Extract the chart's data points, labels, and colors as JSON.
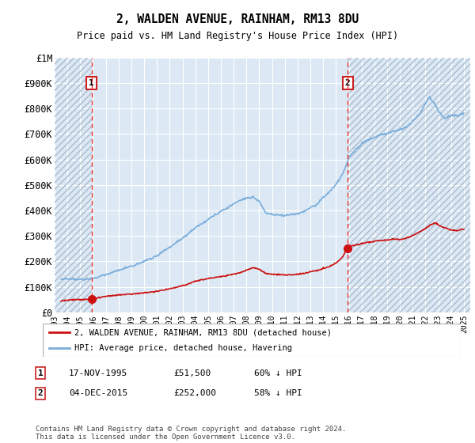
{
  "title": "2, WALDEN AVENUE, RAINHAM, RM13 8DU",
  "subtitle": "Price paid vs. HM Land Registry's House Price Index (HPI)",
  "ylim": [
    0,
    1000000
  ],
  "yticks": [
    0,
    100000,
    200000,
    300000,
    400000,
    500000,
    600000,
    700000,
    800000,
    900000,
    1000000
  ],
  "ytick_labels": [
    "£0",
    "£100K",
    "£200K",
    "£300K",
    "£400K",
    "£500K",
    "£600K",
    "£700K",
    "£800K",
    "£900K",
    "£1M"
  ],
  "xlim_start": 1993.0,
  "xlim_end": 2025.5,
  "plot_bg_color": "#dce9f5",
  "hatch_color": "#aabbcc",
  "grid_color": "#ffffff",
  "transaction1_date": 1995.88,
  "transaction1_price": 51500,
  "transaction2_date": 2015.92,
  "transaction2_price": 252000,
  "red_line_color": "#cc1111",
  "blue_line_color": "#7aaddb",
  "vline_color": "#ee3333",
  "marker_color": "#cc1111",
  "legend_label_red": "2, WALDEN AVENUE, RAINHAM, RM13 8DU (detached house)",
  "legend_label_blue": "HPI: Average price, detached house, Havering",
  "table_row1": [
    "1",
    "17-NOV-1995",
    "£51,500",
    "60% ↓ HPI"
  ],
  "table_row2": [
    "2",
    "04-DEC-2015",
    "£252,000",
    "58% ↓ HPI"
  ],
  "footer": "Contains HM Land Registry data © Crown copyright and database right 2024.\nThis data is licensed under the Open Government Licence v3.0.",
  "hatch_left_end": 1995.88,
  "hatch_right_start": 2015.92
}
